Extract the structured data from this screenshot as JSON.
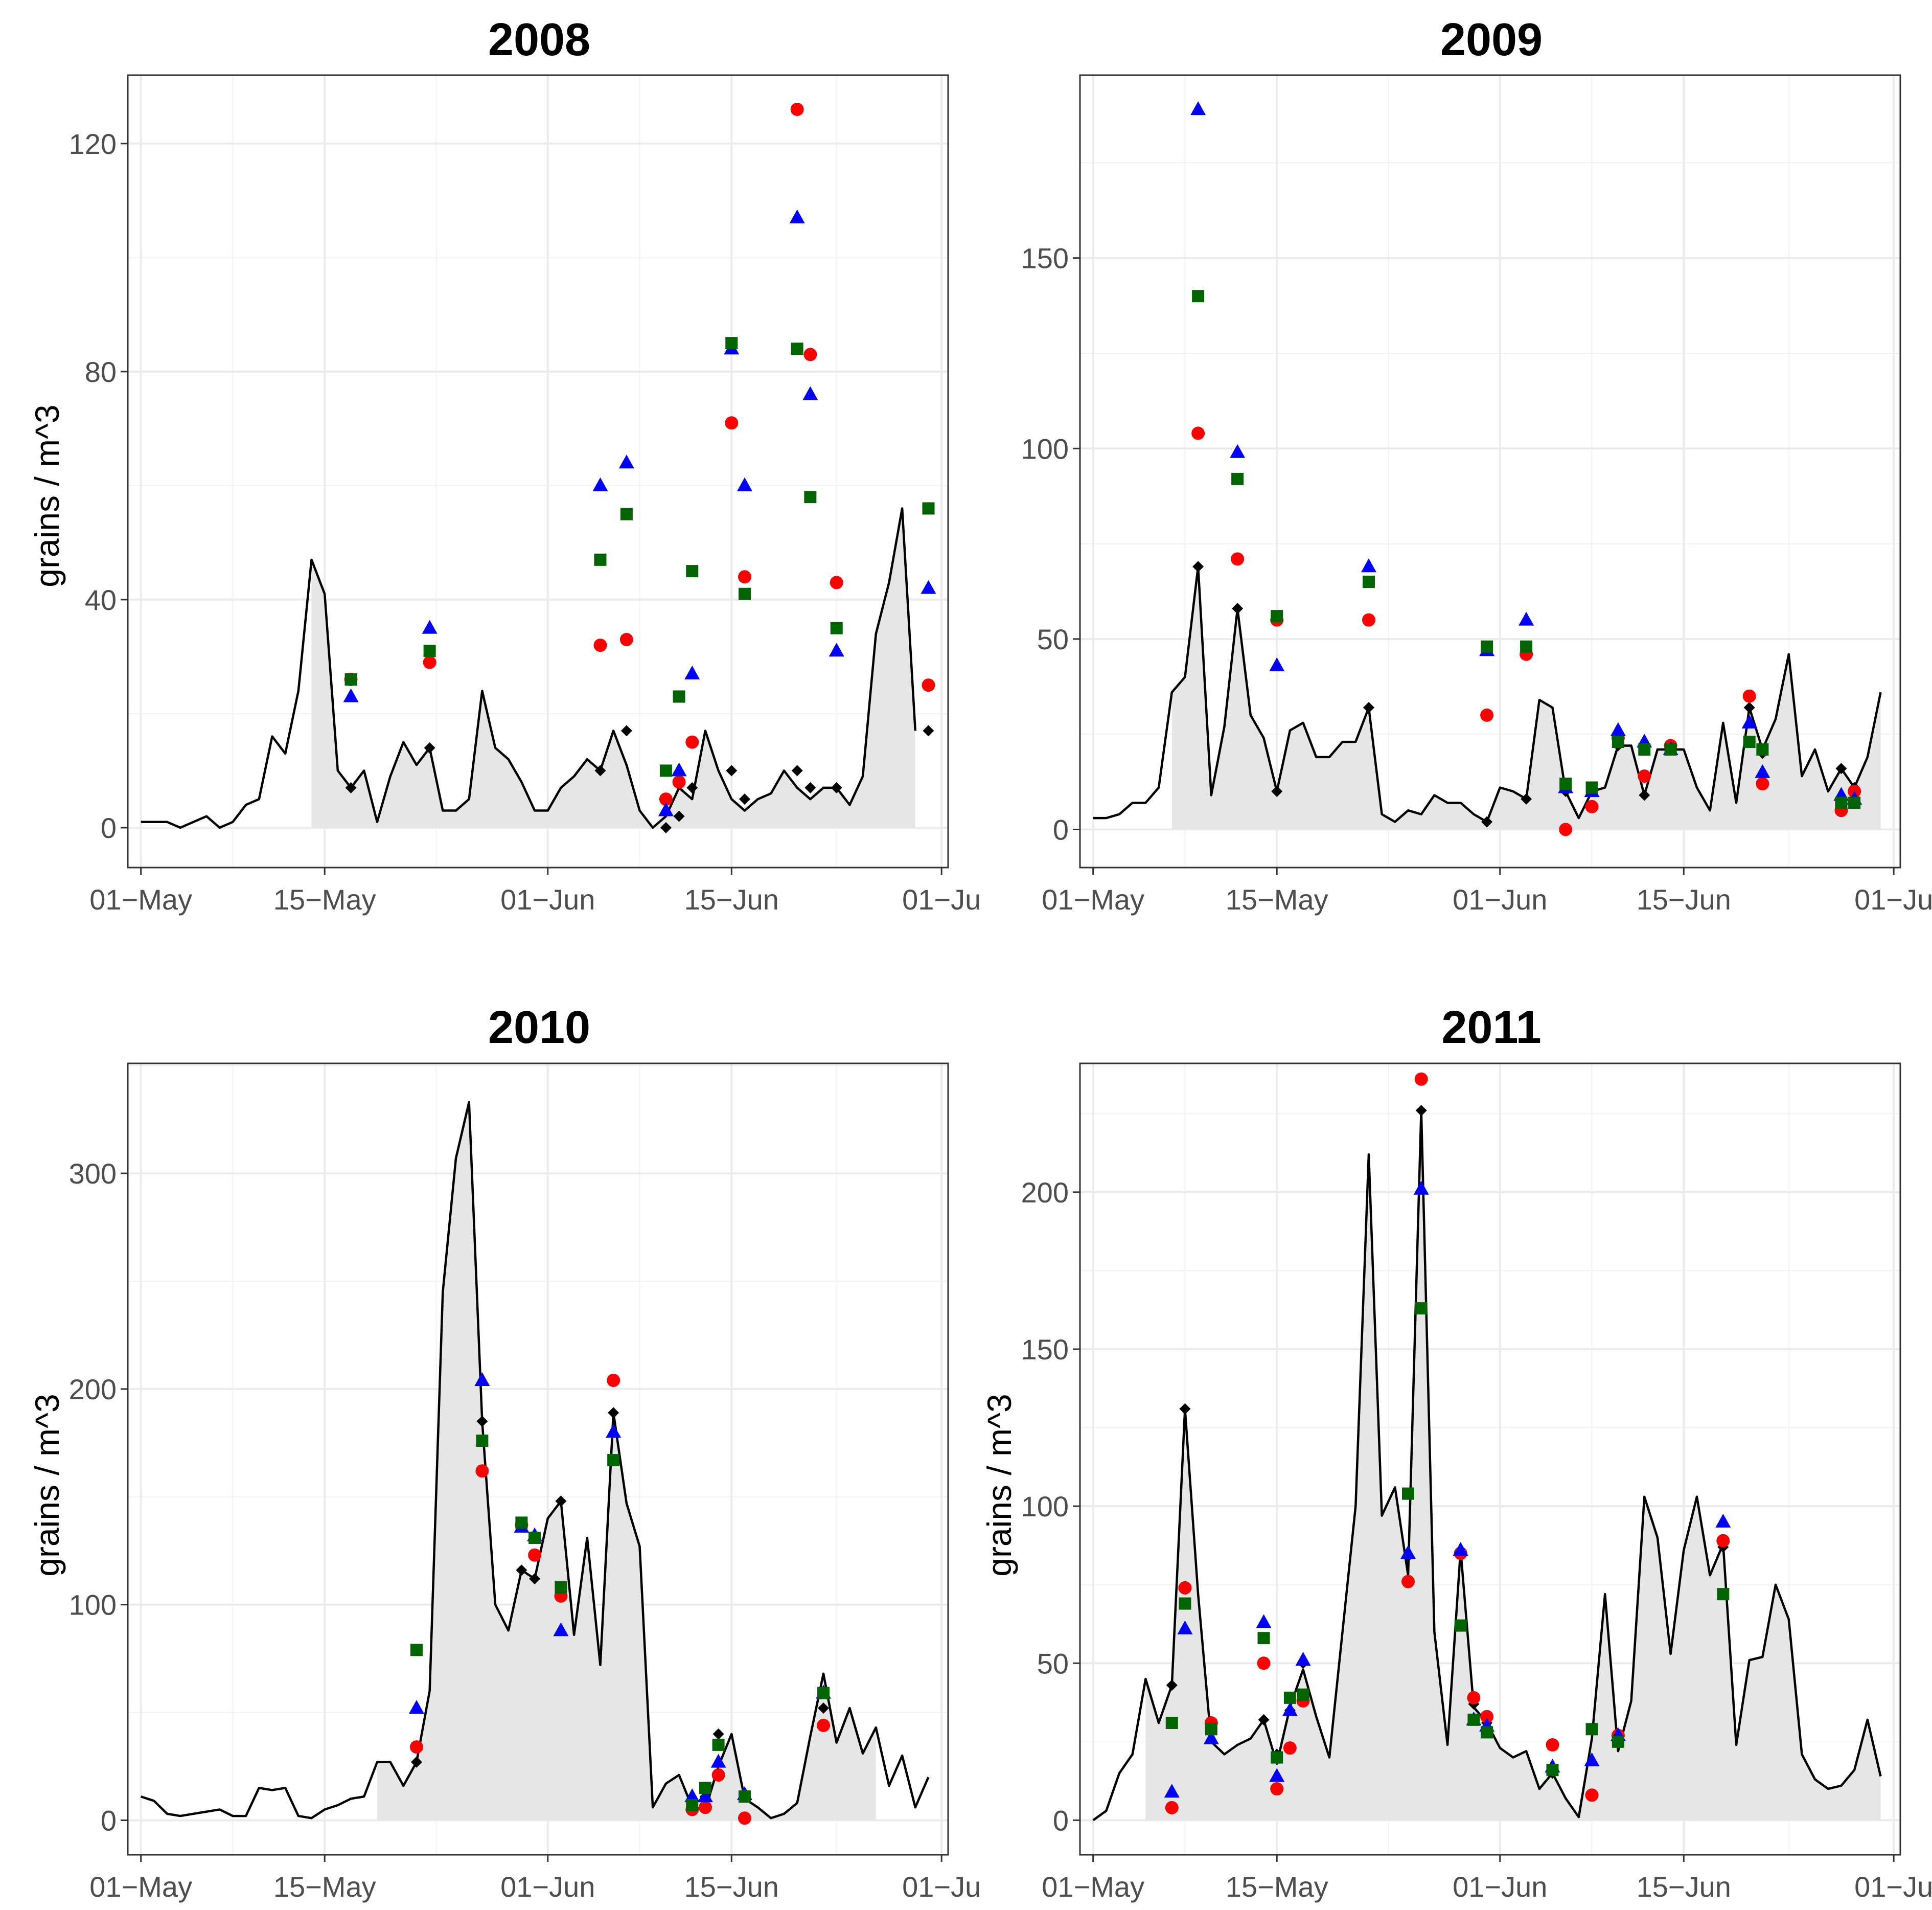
{
  "figure": {
    "ylabel": "grains / m^3"
  },
  "chart_data": [
    {
      "type": "line",
      "title": "2008",
      "xlabel": "",
      "ylabel": "grains / m^3",
      "x_tick_labels": [
        "01−May",
        "15−May",
        "01−Jun",
        "15−Jun",
        "01−Ju"
      ],
      "y_ticks": [
        0,
        40,
        80,
        120
      ],
      "ylim": [
        -7,
        132
      ],
      "xlim": [
        -1,
        61.5
      ],
      "shade_from_day": 13,
      "shade_to_day": 60,
      "observed_line": {
        "name": "observed",
        "x": [
          0,
          1,
          2,
          3,
          4,
          5,
          6,
          7,
          8,
          9,
          10,
          11,
          12,
          13,
          14,
          15,
          16,
          17,
          18,
          19,
          20,
          21,
          22,
          23,
          24,
          25,
          26,
          27,
          28,
          29,
          30,
          31,
          32,
          33,
          34,
          35,
          36,
          37,
          38,
          39,
          40,
          41,
          42,
          43,
          44,
          45,
          46,
          47,
          48,
          49,
          50,
          51,
          52,
          53,
          54,
          55,
          56,
          57,
          58,
          59,
          60
        ],
        "values": [
          1,
          1,
          1,
          0,
          1,
          2,
          0,
          1,
          4,
          5,
          16,
          13,
          24,
          47,
          41,
          10,
          7,
          10,
          1,
          9,
          15,
          11,
          14,
          3,
          3,
          5,
          24,
          14,
          12,
          8,
          3,
          3,
          7,
          9,
          12,
          10,
          17,
          11,
          3,
          0,
          2,
          7,
          5,
          17,
          10,
          5,
          3,
          5,
          6,
          10,
          7,
          5,
          7,
          7,
          4,
          9,
          34,
          43,
          56,
          17,
          null
        ]
      },
      "series": [
        {
          "name": "diamond",
          "color": "#000000",
          "marker": "diamond",
          "x": [
            16,
            22,
            35,
            37,
            40,
            41,
            42,
            45,
            46,
            50,
            51,
            53,
            60
          ],
          "values": [
            7,
            14,
            10,
            17,
            0,
            2,
            7,
            10,
            5,
            10,
            7,
            7,
            17
          ]
        },
        {
          "name": "circle",
          "color": "#ff0000",
          "marker": "circle",
          "x": [
            16,
            22,
            35,
            37,
            40,
            41,
            42,
            45,
            46,
            50,
            51,
            53,
            60
          ],
          "values": [
            26,
            29,
            32,
            33,
            5,
            8,
            15,
            71,
            44,
            126,
            83,
            43,
            25
          ]
        },
        {
          "name": "triangle",
          "color": "#0000ff",
          "marker": "triangle",
          "x": [
            16,
            22,
            35,
            37,
            40,
            41,
            42,
            45,
            46,
            50,
            51,
            53,
            60
          ],
          "values": [
            23,
            35,
            60,
            64,
            3,
            10,
            27,
            84,
            60,
            107,
            76,
            31,
            42
          ]
        },
        {
          "name": "square",
          "color": "#006400",
          "marker": "square",
          "x": [
            16,
            22,
            35,
            37,
            40,
            41,
            42,
            45,
            46,
            50,
            51,
            53,
            60
          ],
          "values": [
            26,
            31,
            47,
            55,
            10,
            23,
            45,
            85,
            41,
            84,
            58,
            35,
            56
          ]
        }
      ]
    },
    {
      "type": "line",
      "title": "2009",
      "xlabel": "",
      "ylabel": "",
      "x_tick_labels": [
        "01−May",
        "15−May",
        "01−Jun",
        "15−Jun",
        "01−Ju"
      ],
      "y_ticks": [
        0,
        50,
        100,
        150
      ],
      "ylim": [
        -10,
        198
      ],
      "xlim": [
        -1,
        61.5
      ],
      "shade_from_day": 6,
      "shade_to_day": 60,
      "observed_line": {
        "name": "observed",
        "x": [
          0,
          1,
          2,
          3,
          4,
          5,
          6,
          7,
          8,
          9,
          10,
          11,
          12,
          13,
          14,
          15,
          16,
          17,
          18,
          19,
          20,
          21,
          22,
          23,
          24,
          25,
          26,
          27,
          28,
          29,
          30,
          31,
          32,
          33,
          34,
          35,
          36,
          37,
          38,
          39,
          40,
          41,
          42,
          43,
          44,
          45,
          46,
          47,
          48,
          49,
          50,
          51,
          52,
          53,
          54,
          55,
          56,
          57,
          58,
          59,
          60
        ],
        "values": [
          3,
          3,
          4,
          7,
          7,
          11,
          36,
          40,
          69,
          9,
          27,
          58,
          30,
          24,
          10,
          26,
          28,
          19,
          19,
          23,
          23,
          32,
          4,
          2,
          5,
          4,
          9,
          7,
          7,
          4,
          2,
          11,
          10,
          8,
          34,
          32,
          10,
          3,
          10,
          11,
          22,
          22,
          9,
          21,
          21,
          21,
          11,
          5,
          28,
          7,
          32,
          21,
          29,
          46,
          14,
          21,
          10,
          16,
          11,
          19,
          36
        ]
      },
      "series": [
        {
          "name": "diamond",
          "color": "#000000",
          "marker": "diamond",
          "x": [
            8,
            11,
            14,
            21,
            30,
            33,
            36,
            38,
            40,
            42,
            44,
            50,
            51,
            57,
            58
          ],
          "values": [
            69,
            58,
            10,
            32,
            2,
            8,
            10,
            10,
            22,
            9,
            21,
            32,
            20,
            16,
            11
          ]
        },
        {
          "name": "circle",
          "color": "#ff0000",
          "marker": "circle",
          "x": [
            8,
            11,
            14,
            21,
            30,
            33,
            36,
            38,
            40,
            42,
            44,
            50,
            51,
            57,
            58
          ],
          "values": [
            104,
            71,
            55,
            55,
            30,
            46,
            0,
            6,
            24,
            14,
            22,
            35,
            12,
            5,
            10
          ]
        },
        {
          "name": "triangle",
          "color": "#0000ff",
          "marker": "triangle",
          "x": [
            8,
            11,
            14,
            21,
            30,
            33,
            36,
            38,
            40,
            42,
            44,
            50,
            51,
            57,
            58
          ],
          "values": [
            189,
            99,
            43,
            69,
            47,
            55,
            11,
            10,
            26,
            23,
            21,
            28,
            15,
            9,
            8
          ]
        },
        {
          "name": "square",
          "color": "#006400",
          "marker": "square",
          "x": [
            8,
            11,
            14,
            21,
            30,
            33,
            36,
            38,
            40,
            42,
            44,
            50,
            51,
            57,
            58
          ],
          "values": [
            140,
            92,
            56,
            65,
            48,
            48,
            12,
            11,
            23,
            21,
            21,
            23,
            21,
            7,
            7
          ]
        }
      ]
    },
    {
      "type": "line",
      "title": "2010",
      "xlabel": "",
      "ylabel": "grains / m^3",
      "x_tick_labels": [
        "01−May",
        "15−May",
        "01−Jun",
        "15−Jun",
        "01−Ju"
      ],
      "y_ticks": [
        0,
        100,
        200,
        300
      ],
      "ylim": [
        -16,
        351
      ],
      "xlim": [
        -1,
        61.5
      ],
      "shade_from_day": 18,
      "shade_to_day": 56,
      "observed_line": {
        "name": "observed",
        "x": [
          0,
          1,
          2,
          3,
          4,
          5,
          6,
          7,
          8,
          9,
          10,
          11,
          12,
          13,
          14,
          15,
          16,
          17,
          18,
          19,
          20,
          21,
          22,
          23,
          24,
          25,
          26,
          27,
          28,
          29,
          30,
          31,
          32,
          33,
          34,
          35,
          36,
          37,
          38,
          39,
          40,
          41,
          42,
          43,
          44,
          45,
          46,
          47,
          48,
          49,
          50,
          51,
          52,
          53,
          54,
          55,
          56,
          57,
          58,
          59,
          60
        ],
        "values": [
          11,
          9,
          3,
          2,
          3,
          4,
          5,
          2,
          2,
          15,
          14,
          15,
          2,
          1,
          5,
          7,
          10,
          11,
          27,
          27,
          16,
          27,
          60,
          245,
          307,
          333,
          185,
          100,
          88,
          116,
          112,
          140,
          148,
          86,
          131,
          72,
          189,
          147,
          127,
          6,
          17,
          21,
          6,
          5,
          25,
          40,
          10,
          6,
          1,
          3,
          8,
          39,
          68,
          36,
          52,
          31,
          43,
          16,
          30,
          6,
          20
        ]
      },
      "series": [
        {
          "name": "diamond",
          "color": "#000000",
          "marker": "diamond",
          "x": [
            21,
            26,
            29,
            30,
            32,
            36,
            42,
            43,
            44,
            46,
            52
          ],
          "values": [
            27,
            185,
            116,
            112,
            148,
            189,
            6,
            11,
            40,
            11,
            52
          ]
        },
        {
          "name": "circle",
          "color": "#ff0000",
          "marker": "circle",
          "x": [
            21,
            26,
            29,
            30,
            32,
            36,
            42,
            43,
            44,
            46,
            52
          ],
          "values": [
            34,
            162,
            137,
            123,
            104,
            204,
            5,
            6,
            21,
            1,
            44
          ]
        },
        {
          "name": "triangle",
          "color": "#0000ff",
          "marker": "triangle",
          "x": [
            21,
            26,
            29,
            30,
            32,
            36,
            42,
            43,
            44,
            46,
            52
          ],
          "values": [
            52,
            204,
            136,
            132,
            88,
            180,
            11,
            11,
            27,
            12,
            59
          ]
        },
        {
          "name": "square",
          "color": "#006400",
          "marker": "square",
          "x": [
            21,
            26,
            29,
            30,
            32,
            36,
            42,
            43,
            44,
            46,
            52
          ],
          "values": [
            79,
            176,
            138,
            131,
            108,
            167,
            7,
            15,
            35,
            11,
            59
          ]
        }
      ]
    },
    {
      "type": "line",
      "title": "2011",
      "xlabel": "",
      "ylabel": "grains / m^3",
      "x_tick_labels": [
        "01−May",
        "15−May",
        "01−Jun",
        "15−Jun",
        "01−Ju"
      ],
      "y_ticks": [
        0,
        50,
        100,
        150,
        200
      ],
      "ylim": [
        -11,
        241
      ],
      "xlim": [
        -1,
        61.5
      ],
      "shade_from_day": 4,
      "shade_to_day": 60,
      "observed_line": {
        "name": "observed",
        "x": [
          0,
          1,
          2,
          3,
          4,
          5,
          6,
          7,
          8,
          9,
          10,
          11,
          12,
          13,
          14,
          15,
          16,
          17,
          18,
          19,
          20,
          21,
          22,
          23,
          24,
          25,
          26,
          27,
          28,
          29,
          30,
          31,
          32,
          33,
          34,
          35,
          36,
          37,
          38,
          39,
          40,
          41,
          42,
          43,
          44,
          45,
          46,
          47,
          48,
          49,
          50,
          51,
          52,
          53,
          54,
          55,
          56,
          57,
          58,
          59,
          60
        ],
        "values": [
          0,
          3,
          15,
          21,
          45,
          31,
          43,
          131,
          72,
          25,
          21,
          24,
          26,
          32,
          18,
          36,
          48,
          33,
          20,
          60,
          100,
          212,
          97,
          106,
          78,
          226,
          60,
          24,
          86,
          36,
          31,
          23,
          20,
          22,
          10,
          15,
          7,
          1,
          26,
          72,
          22,
          38,
          103,
          90,
          53,
          86,
          103,
          78,
          88,
          24,
          51,
          52,
          75,
          64,
          21,
          13,
          10,
          11,
          16,
          32,
          14
        ]
      },
      "series": [
        {
          "name": "diamond",
          "color": "#000000",
          "marker": "diamond",
          "x": [
            6,
            7,
            9,
            13,
            14,
            15,
            16,
            24,
            25,
            28,
            29,
            30,
            35,
            38,
            40,
            48
          ],
          "values": [
            43,
            131,
            29,
            32,
            21,
            35,
            50,
            84,
            226,
            86,
            37,
            31,
            15,
            29,
            26,
            87
          ]
        },
        {
          "name": "circle",
          "color": "#ff0000",
          "marker": "circle",
          "x": [
            6,
            7,
            9,
            13,
            14,
            15,
            16,
            24,
            25,
            28,
            29,
            30,
            35,
            38,
            40,
            48
          ],
          "values": [
            4,
            74,
            31,
            50,
            10,
            23,
            38,
            76,
            236,
            85,
            39,
            33,
            24,
            8,
            27,
            89
          ]
        },
        {
          "name": "triangle",
          "color": "#0000ff",
          "marker": "triangle",
          "x": [
            6,
            7,
            9,
            13,
            14,
            15,
            16,
            24,
            25,
            28,
            29,
            30,
            35,
            38,
            40,
            48
          ],
          "values": [
            9,
            61,
            26,
            63,
            14,
            35,
            51,
            85,
            201,
            86,
            32,
            30,
            17,
            19,
            27,
            95
          ]
        },
        {
          "name": "square",
          "color": "#006400",
          "marker": "square",
          "x": [
            6,
            7,
            9,
            13,
            14,
            15,
            16,
            24,
            25,
            28,
            29,
            30,
            35,
            38,
            40,
            48
          ],
          "values": [
            31,
            69,
            29,
            58,
            20,
            39,
            40,
            104,
            163,
            62,
            32,
            28,
            16,
            29,
            25,
            72
          ]
        }
      ]
    }
  ]
}
